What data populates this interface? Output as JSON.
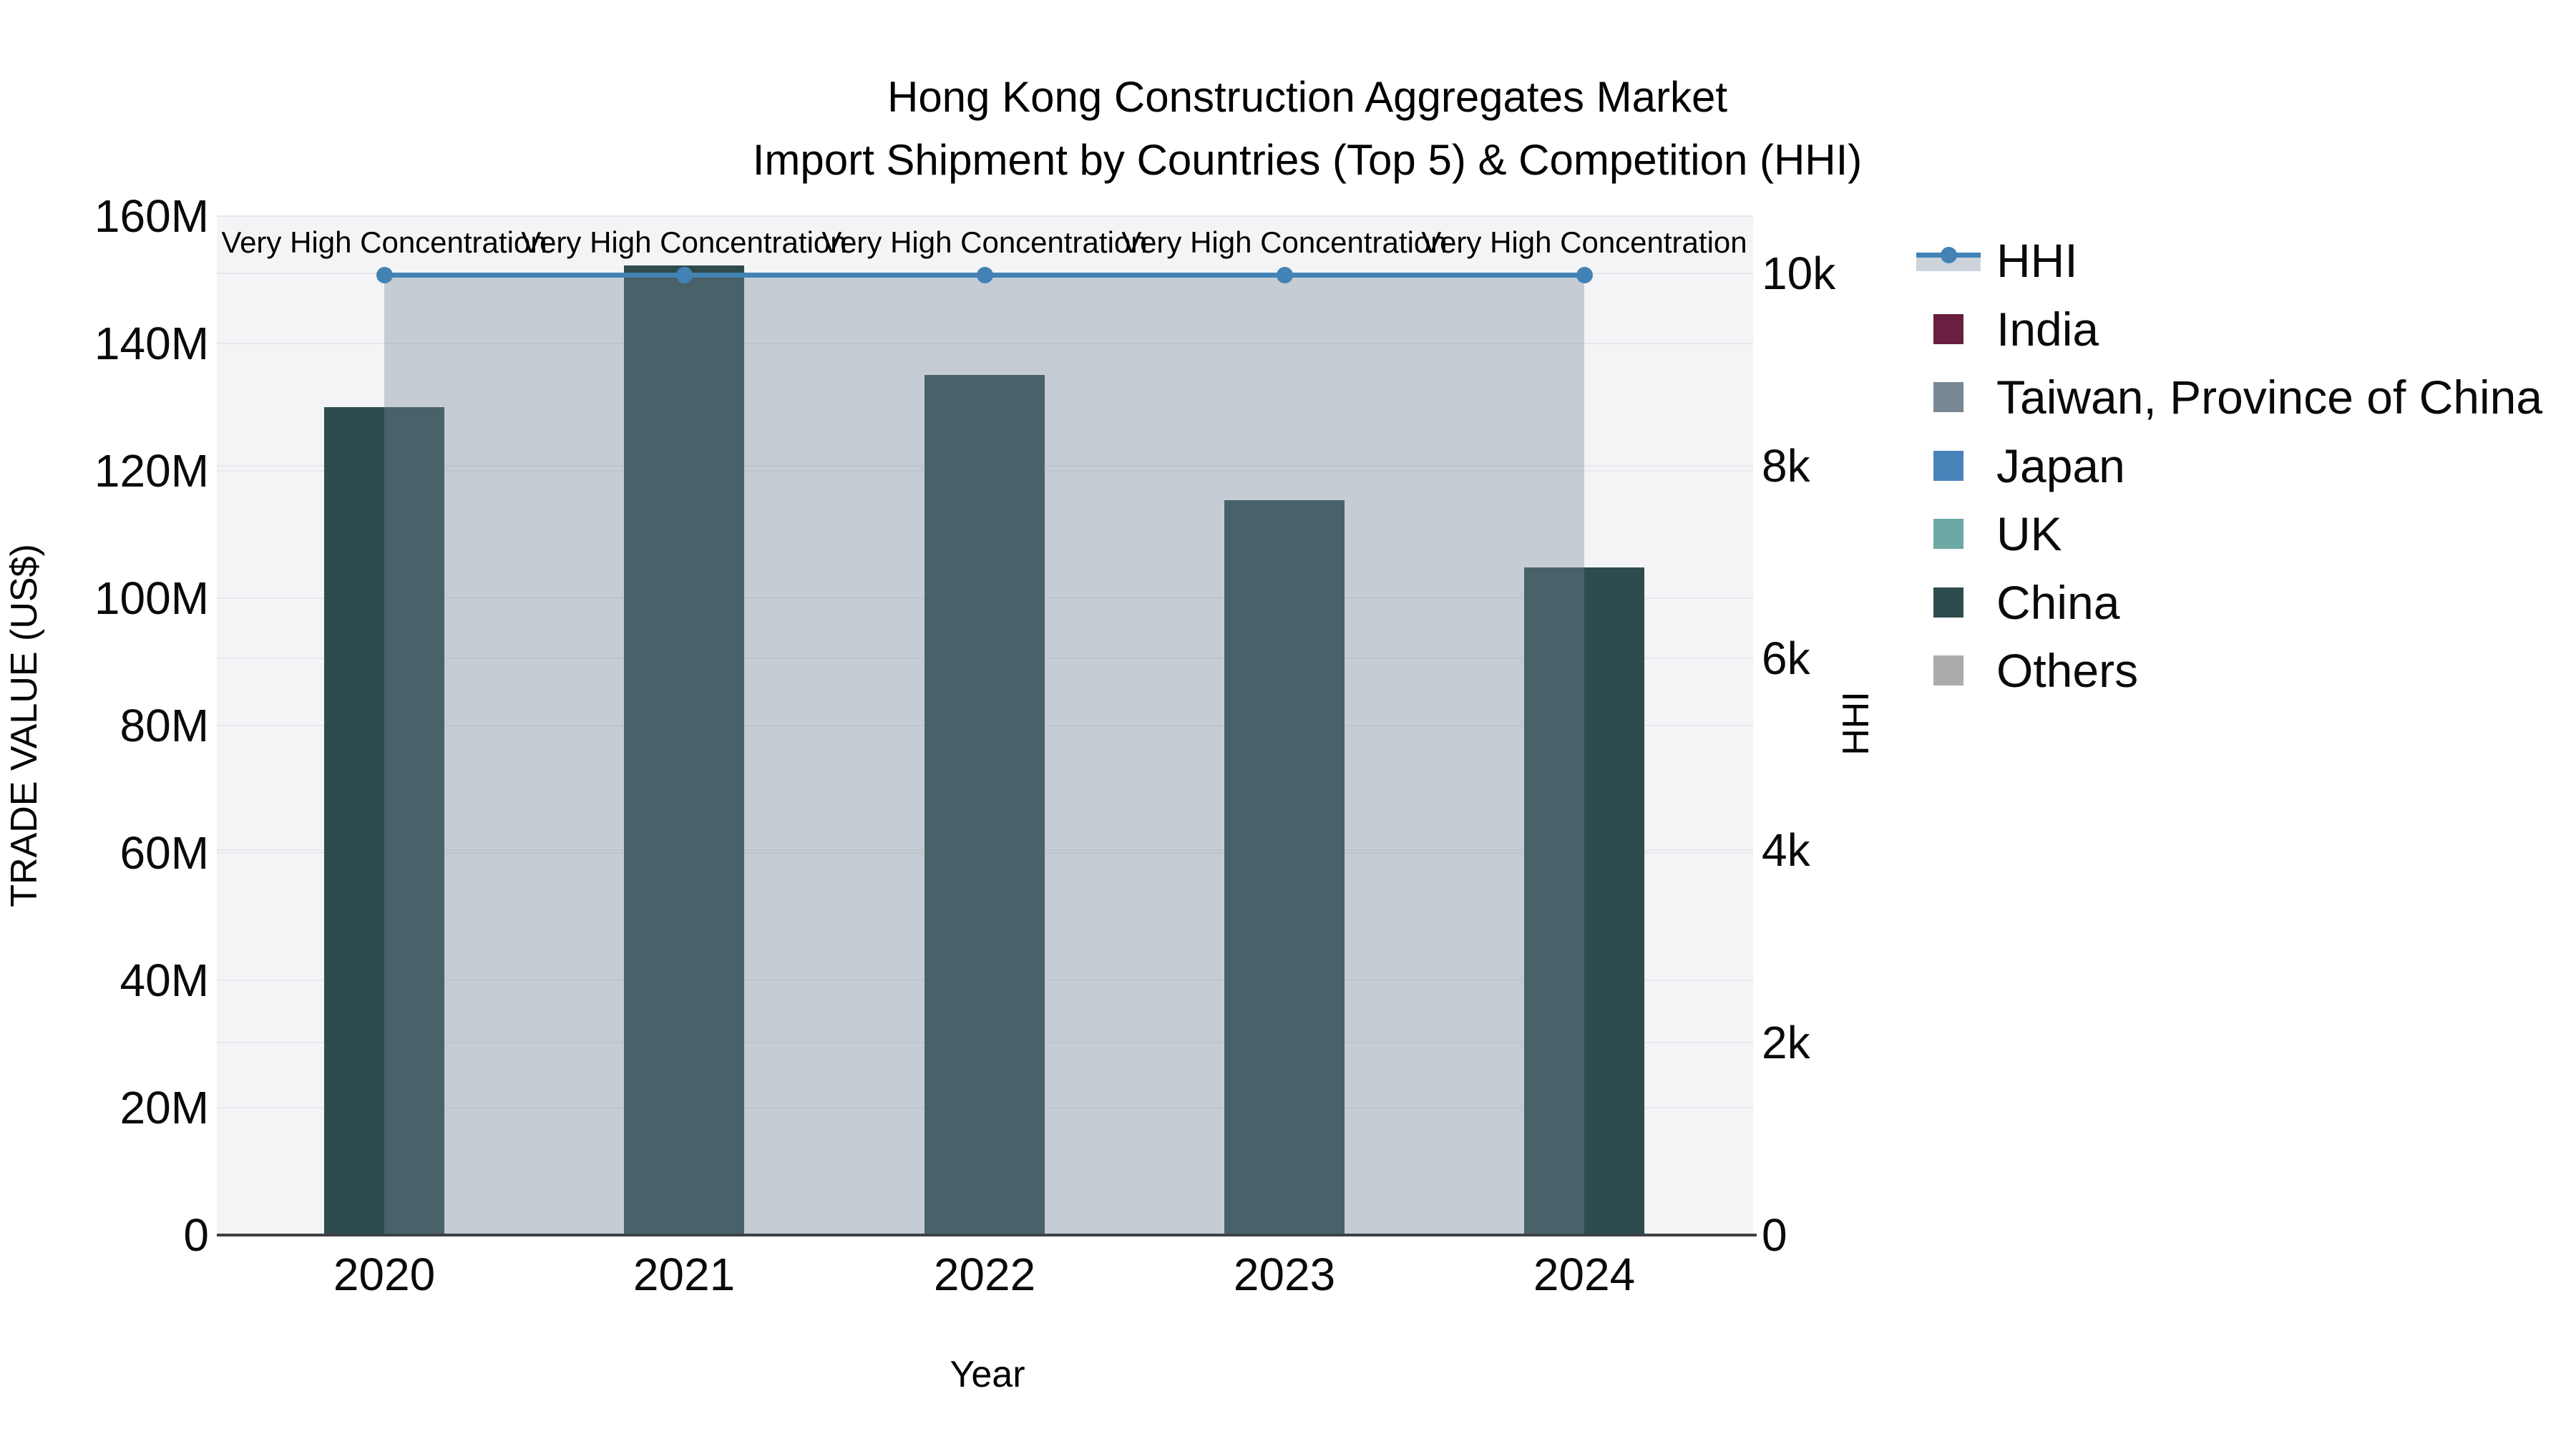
{
  "title": {
    "line1": "Hong Kong Construction Aggregates Market",
    "line2": "Import Shipment by Countries (Top 5) & Competition (HHI)"
  },
  "axes": {
    "y_left": {
      "title": "TRADE VALUE (US$)",
      "tick_labels": [
        "0",
        "20M",
        "40M",
        "60M",
        "80M",
        "100M",
        "120M",
        "140M",
        "160M"
      ],
      "tick_values_musd": [
        0,
        20,
        40,
        60,
        80,
        100,
        120,
        140,
        160
      ]
    },
    "y_right": {
      "title": "HHI",
      "tick_labels": [
        "0",
        "2k",
        "4k",
        "6k",
        "8k",
        "10k"
      ],
      "tick_values": [
        0,
        2000,
        4000,
        6000,
        8000,
        10000
      ]
    },
    "x": {
      "title": "Year",
      "tick_labels": [
        "2020",
        "2021",
        "2022",
        "2023",
        "2024"
      ]
    }
  },
  "chart_data": {
    "type": "bar+line",
    "title": "Hong Kong Construction Aggregates Market — Import Shipment by Countries (Top 5) & Competition (HHI)",
    "xlabel": "Year",
    "ylabel_left": "TRADE VALUE (US$)",
    "ylabel_right": "HHI",
    "ylim_left_musd": [
      0,
      160
    ],
    "ylim_right": [
      0,
      10595
    ],
    "grid": true,
    "legend_position": "right",
    "categories": [
      "2020",
      "2021",
      "2022",
      "2023",
      "2024"
    ],
    "series": [
      {
        "name": "India",
        "type": "bar",
        "color": "#6a1f40",
        "values_musd": [
          0,
          0,
          0,
          0,
          0
        ]
      },
      {
        "name": "Taiwan, Province of China",
        "type": "bar",
        "color": "#7a8795",
        "values_musd": [
          0,
          0,
          0,
          0,
          0
        ]
      },
      {
        "name": "Japan",
        "type": "bar",
        "color": "#4a83ba",
        "values_musd": [
          0,
          0,
          0,
          0,
          0
        ]
      },
      {
        "name": "UK",
        "type": "bar",
        "color": "#6ca8a4",
        "values_musd": [
          0,
          0,
          0,
          0,
          0
        ]
      },
      {
        "name": "China",
        "type": "bar",
        "color": "#2e4c4e",
        "values_musd": [
          130.0,
          152.2,
          135.1,
          115.4,
          104.8
        ]
      },
      {
        "name": "Others",
        "type": "bar",
        "color": "#ababab",
        "values_musd": [
          0,
          0,
          0,
          0,
          0
        ]
      }
    ],
    "hhi_line": {
      "name": "HHI",
      "type": "line",
      "color": "#4282b5",
      "fill_color": "rgba(119,136,153,0.37)",
      "values": [
        9985,
        9985,
        9985,
        9985,
        9985
      ]
    },
    "annotations": [
      "Very High Concentration",
      "Very High Concentration",
      "Very High Concentration",
      "Very High Concentration",
      "Very High Concentration"
    ]
  },
  "legend": {
    "hhi_item": {
      "label": "HHI",
      "line_color": "#4282b5",
      "band_color": "#ccd3da"
    },
    "items": [
      {
        "label": "India",
        "color": "#6a1f40"
      },
      {
        "label": "Taiwan, Province of China",
        "color": "#7a8795"
      },
      {
        "label": "Japan",
        "color": "#4a83ba"
      },
      {
        "label": "UK",
        "color": "#6ca8a4"
      },
      {
        "label": "China",
        "color": "#2e4c4e"
      },
      {
        "label": "Others",
        "color": "#ababab"
      }
    ]
  },
  "colors": {
    "plot_bg": "#f4f4f6",
    "gridline": "#e6e8eb",
    "axis_line": "#3d4245",
    "text": "#0a0a0a"
  }
}
